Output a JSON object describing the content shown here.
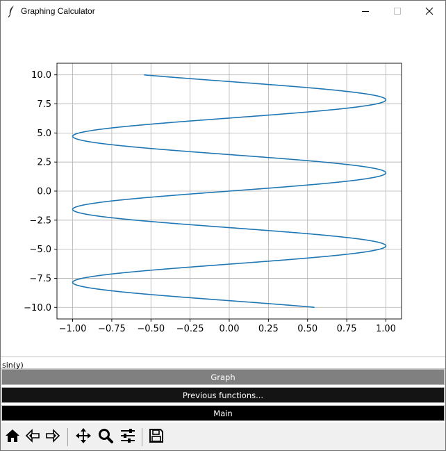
{
  "window": {
    "title": "Graphing Calculator",
    "app_icon": "feather-icon",
    "controls": [
      "minimize-icon",
      "maximize-icon",
      "close-icon"
    ]
  },
  "chart_data": {
    "type": "line",
    "title": "",
    "xlabel": "",
    "ylabel": "",
    "function": "x = sin(y)",
    "y_range": [
      -10,
      10
    ],
    "xlim": [
      -1.1,
      1.1
    ],
    "ylim": [
      -11,
      11
    ],
    "xticks": [
      "−1.00",
      "−0.75",
      "−0.50",
      "−0.25",
      "0.00",
      "0.25",
      "0.50",
      "0.75",
      "1.00"
    ],
    "yticks": [
      "10.0",
      "7.5",
      "5.0",
      "2.5",
      "0.0",
      "−2.5",
      "−5.0",
      "−7.5",
      "−10.0"
    ],
    "xtick_values": [
      -1.0,
      -0.75,
      -0.5,
      -0.25,
      0.0,
      0.25,
      0.5,
      0.75,
      1.0
    ],
    "ytick_values": [
      10.0,
      7.5,
      5.0,
      2.5,
      0.0,
      -2.5,
      -5.0,
      -7.5,
      -10.0
    ],
    "grid": true,
    "series": [
      {
        "color": "#1f77b4"
      }
    ]
  },
  "input": {
    "value": "sin(y)"
  },
  "buttons": {
    "graph": "Graph",
    "previous": "Previous functions...",
    "main": "Main"
  },
  "toolbar": {
    "icons": [
      "home-icon",
      "back-icon",
      "forward-icon",
      "pan-icon",
      "zoom-icon",
      "configure-subplots-icon",
      "save-icon"
    ]
  }
}
